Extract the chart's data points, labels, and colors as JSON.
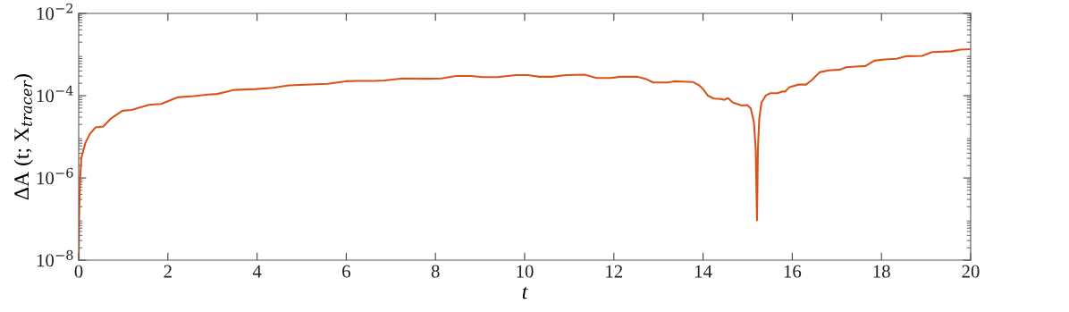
{
  "chart_data": {
    "type": "line",
    "xlabel": "t",
    "ylabel": "ΔA (t; X$_{tracer}$)",
    "log": "y",
    "grid": false,
    "marker": "none",
    "line_style": "solid",
    "xlim": [
      0,
      20
    ],
    "xticks": [
      0,
      2,
      4,
      6,
      8,
      10,
      12,
      14,
      16,
      18,
      20
    ],
    "ylim": [
      1e-08,
      0.01
    ],
    "yticks": [
      {
        "value": 1e-08,
        "label": "10$^{−8}$"
      },
      {
        "value": 1e-06,
        "label": "10$^{−6}$"
      },
      {
        "value": 0.0001,
        "label": "10$^{−4}$"
      },
      {
        "value": 0.01,
        "label": "10$^{−2}$"
      }
    ],
    "series": [
      {
        "color": "#d95319",
        "x": [
          0,
          0.013,
          0.033,
          0.06,
          0.15,
          0.25,
          0.38,
          0.55,
          0.71,
          0.98,
          1.18,
          1.58,
          1.85,
          2.21,
          2.58,
          2.91,
          3.11,
          3.48,
          3.98,
          4.35,
          4.71,
          5.58,
          5.98,
          6.25,
          6.65,
          6.86,
          7.26,
          7.79,
          8.13,
          8.46,
          8.8,
          9.06,
          9.4,
          9.8,
          10.07,
          10.33,
          10.6,
          10.94,
          11.34,
          11.61,
          11.94,
          12.14,
          12.54,
          12.71,
          12.88,
          13.21,
          13.35,
          13.78,
          13.9,
          14.0,
          14.11,
          14.24,
          14.41,
          14.47,
          14.56,
          14.67,
          14.87,
          14.99,
          15.07,
          15.14,
          15.18,
          15.21,
          15.23,
          15.26,
          15.31,
          15.41,
          15.51,
          15.67,
          15.77,
          15.84,
          15.94,
          16.14,
          16.31,
          16.44,
          16.61,
          16.81,
          17.07,
          17.21,
          17.41,
          17.64,
          17.84,
          18.07,
          18.34,
          18.54,
          18.91,
          19.14,
          19.57,
          19.77,
          19.97
        ],
        "values": [
          1.1e-08,
          1.8e-07,
          9.8e-07,
          3.1e-06,
          7.1e-06,
          1.17e-05,
          1.7e-05,
          1.78e-05,
          2.7e-05,
          4.3e-05,
          4.5e-05,
          6e-05,
          6.3e-05,
          9.1e-05,
          9.8e-05,
          0.000107,
          0.00011,
          0.000138,
          0.000145,
          0.000155,
          0.000178,
          0.000195,
          0.000224,
          0.000229,
          0.000229,
          0.000234,
          0.000263,
          0.000257,
          0.000263,
          0.000302,
          0.000302,
          0.000282,
          0.000282,
          0.000316,
          0.000316,
          0.000288,
          0.000288,
          0.000316,
          0.000324,
          0.000269,
          0.000269,
          0.000288,
          0.000288,
          0.000257,
          0.000209,
          0.000209,
          0.000224,
          0.000214,
          0.000182,
          0.000145,
          0.0001,
          8.5e-05,
          8.3e-05,
          7.9e-05,
          8.7e-05,
          6.8e-05,
          5.75e-05,
          5.9e-05,
          4.9e-05,
          2.3e-05,
          5.1e-06,
          9.3e-08,
          5.1e-06,
          2.7e-05,
          6.8e-05,
          0.000102,
          0.000115,
          0.000115,
          0.000126,
          0.000126,
          0.000162,
          0.000186,
          0.000186,
          0.00024,
          0.00037,
          0.00041,
          0.00043,
          0.00049,
          0.00051,
          0.000525,
          0.00071,
          0.00076,
          0.00079,
          0.00091,
          0.00093,
          0.00115,
          0.0012,
          0.00132,
          0.00135
        ]
      }
    ]
  }
}
